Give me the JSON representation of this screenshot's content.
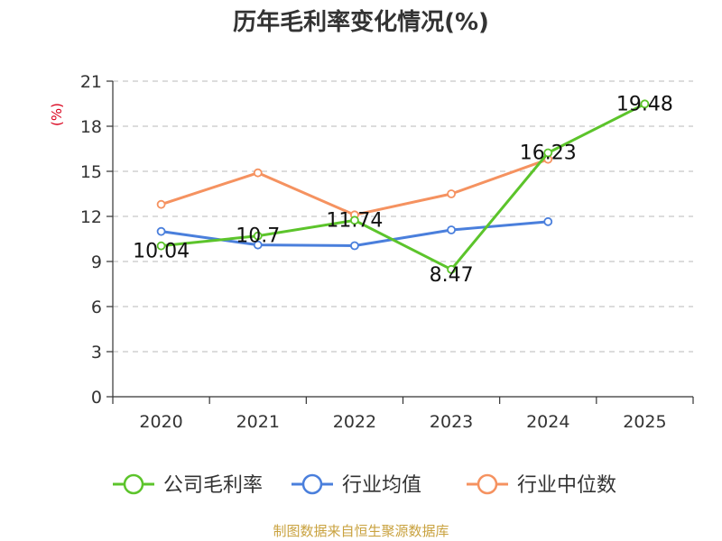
{
  "chart_data": {
    "type": "line",
    "title": "历年毛利率变化情况(%)",
    "ylabel": "(%)",
    "categories": [
      "2020",
      "2021",
      "2022",
      "2023",
      "2024",
      "2025"
    ],
    "yticks": [
      "0",
      "3",
      "6",
      "9",
      "12",
      "15",
      "18",
      "21"
    ],
    "ylim": [
      0,
      21
    ],
    "grid": "horizontal-dashed",
    "legend_position": "bottom",
    "series": [
      {
        "name": "公司毛利率",
        "color": "#5cc42b",
        "values": [
          10.04,
          10.7,
          11.74,
          8.47,
          16.23,
          19.48
        ],
        "labels": [
          "10.04",
          "10.7",
          "11.74",
          "8.47",
          "16.23",
          "19.48"
        ]
      },
      {
        "name": "行业均值",
        "color": "#4a7fdc",
        "values": [
          11.0,
          10.1,
          10.05,
          11.1,
          11.65,
          null
        ]
      },
      {
        "name": "行业中位数",
        "color": "#f59260",
        "values": [
          12.8,
          14.9,
          12.1,
          13.5,
          15.8,
          null
        ]
      }
    ]
  },
  "source": "制图数据来自恒生聚源数据库"
}
